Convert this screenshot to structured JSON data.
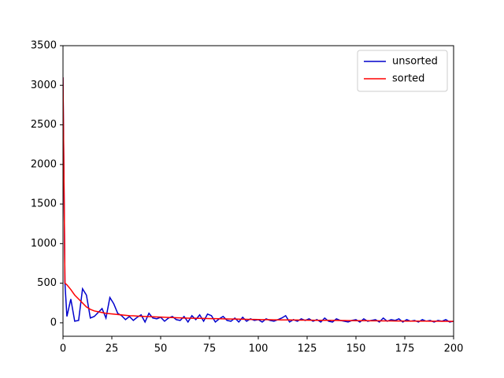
{
  "chart_data": {
    "type": "line",
    "x": [
      0,
      1,
      2,
      4,
      6,
      8,
      10,
      12,
      14,
      16,
      18,
      20,
      22,
      24,
      26,
      28,
      30,
      32,
      34,
      36,
      38,
      40,
      42,
      44,
      46,
      48,
      50,
      52,
      54,
      56,
      58,
      60,
      62,
      64,
      66,
      68,
      70,
      72,
      74,
      76,
      78,
      80,
      82,
      84,
      86,
      88,
      90,
      92,
      94,
      96,
      98,
      100,
      102,
      104,
      106,
      108,
      110,
      112,
      114,
      116,
      118,
      120,
      122,
      124,
      126,
      128,
      130,
      132,
      134,
      136,
      138,
      140,
      142,
      144,
      146,
      148,
      150,
      152,
      154,
      156,
      158,
      160,
      162,
      164,
      166,
      168,
      170,
      172,
      174,
      176,
      178,
      180,
      182,
      184,
      186,
      188,
      190,
      192,
      194,
      196,
      198,
      200
    ],
    "series": [
      {
        "name": "unsorted",
        "color": "#0000cc",
        "values": [
          3100,
          500,
          80,
          300,
          20,
          30,
          430,
          350,
          60,
          80,
          130,
          180,
          60,
          320,
          240,
          120,
          90,
          40,
          80,
          30,
          70,
          100,
          10,
          120,
          60,
          50,
          70,
          20,
          60,
          80,
          40,
          30,
          80,
          10,
          90,
          40,
          100,
          20,
          110,
          90,
          10,
          50,
          80,
          30,
          20,
          60,
          10,
          70,
          20,
          50,
          30,
          40,
          10,
          50,
          30,
          20,
          40,
          60,
          90,
          10,
          40,
          20,
          50,
          30,
          50,
          20,
          40,
          10,
          60,
          20,
          10,
          50,
          30,
          20,
          10,
          30,
          40,
          10,
          50,
          20,
          30,
          40,
          10,
          60,
          20,
          40,
          30,
          50,
          10,
          40,
          20,
          30,
          10,
          40,
          20,
          30,
          10,
          30,
          20,
          40,
          10,
          20
        ]
      },
      {
        "name": "sorted",
        "color": "#ff0000",
        "values": [
          3100,
          500,
          480,
          420,
          350,
          300,
          250,
          200,
          170,
          150,
          140,
          130,
          120,
          115,
          110,
          105,
          100,
          95,
          90,
          88,
          85,
          82,
          80,
          78,
          76,
          74,
          72,
          70,
          68,
          66,
          64,
          62,
          60,
          59,
          58,
          57,
          56,
          55,
          54,
          53,
          52,
          51,
          50,
          49,
          48,
          47,
          46,
          45,
          44,
          43,
          42,
          41,
          40,
          40,
          39,
          38,
          38,
          37,
          36,
          36,
          35,
          35,
          34,
          34,
          33,
          33,
          32,
          32,
          31,
          31,
          30,
          30,
          29,
          29,
          28,
          28,
          27,
          27,
          26,
          26,
          25,
          25,
          25,
          24,
          24,
          24,
          23,
          23,
          23,
          22,
          22,
          22,
          21,
          21,
          21,
          20,
          20,
          20,
          19,
          19,
          19,
          18
        ]
      }
    ],
    "xlim": [
      0,
      200
    ],
    "xticks": [
      0,
      25,
      50,
      75,
      100,
      125,
      150,
      175,
      200
    ],
    "ylim": [
      -170,
      3500
    ],
    "yticks": [
      0,
      500,
      1000,
      1500,
      2000,
      2500,
      3000,
      3500
    ],
    "legend": "upper right",
    "grid": false
  }
}
